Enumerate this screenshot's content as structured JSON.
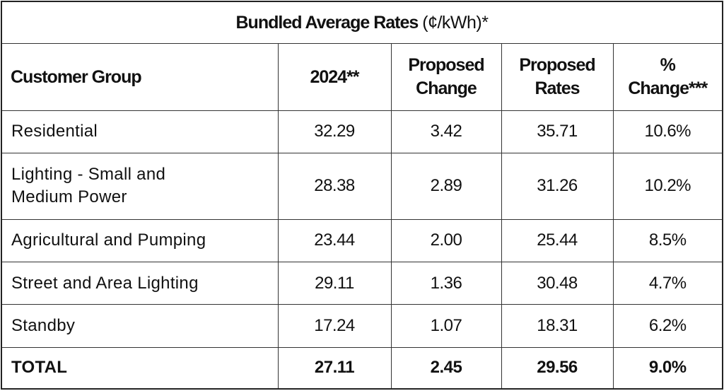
{
  "table": {
    "title": "Bundled Average Rates",
    "title_unit": "(¢/kWh)*",
    "headers": {
      "group": "Customer Group",
      "year": "2024**",
      "change_line1": "Proposed",
      "change_line2": "Change",
      "rates_line1": "Proposed",
      "rates_line2": "Rates",
      "pct_line1": "%",
      "pct_line2": "Change***"
    },
    "rows": [
      {
        "group": "Residential",
        "group_line2": "",
        "year": "32.29",
        "change": "3.42",
        "rates": "35.71",
        "pct": "10.6%"
      },
      {
        "group": "Lighting - Small and",
        "group_line2": "Medium Power",
        "year": "28.38",
        "change": "2.89",
        "rates": "31.26",
        "pct": "10.2%"
      },
      {
        "group": "Agricultural and Pumping",
        "group_line2": "",
        "year": "23.44",
        "change": "2.00",
        "rates": "25.44",
        "pct": "8.5%"
      },
      {
        "group": "Street and Area Lighting",
        "group_line2": "",
        "year": "29.11",
        "change": "1.36",
        "rates": "30.48",
        "pct": "4.7%"
      },
      {
        "group": "Standby",
        "group_line2": "",
        "year": "17.24",
        "change": "1.07",
        "rates": "18.31",
        "pct": "6.2%"
      }
    ],
    "total": {
      "group": "TOTAL",
      "year": "27.11",
      "change": "2.45",
      "rates": "29.56",
      "pct": "9.0%"
    }
  }
}
